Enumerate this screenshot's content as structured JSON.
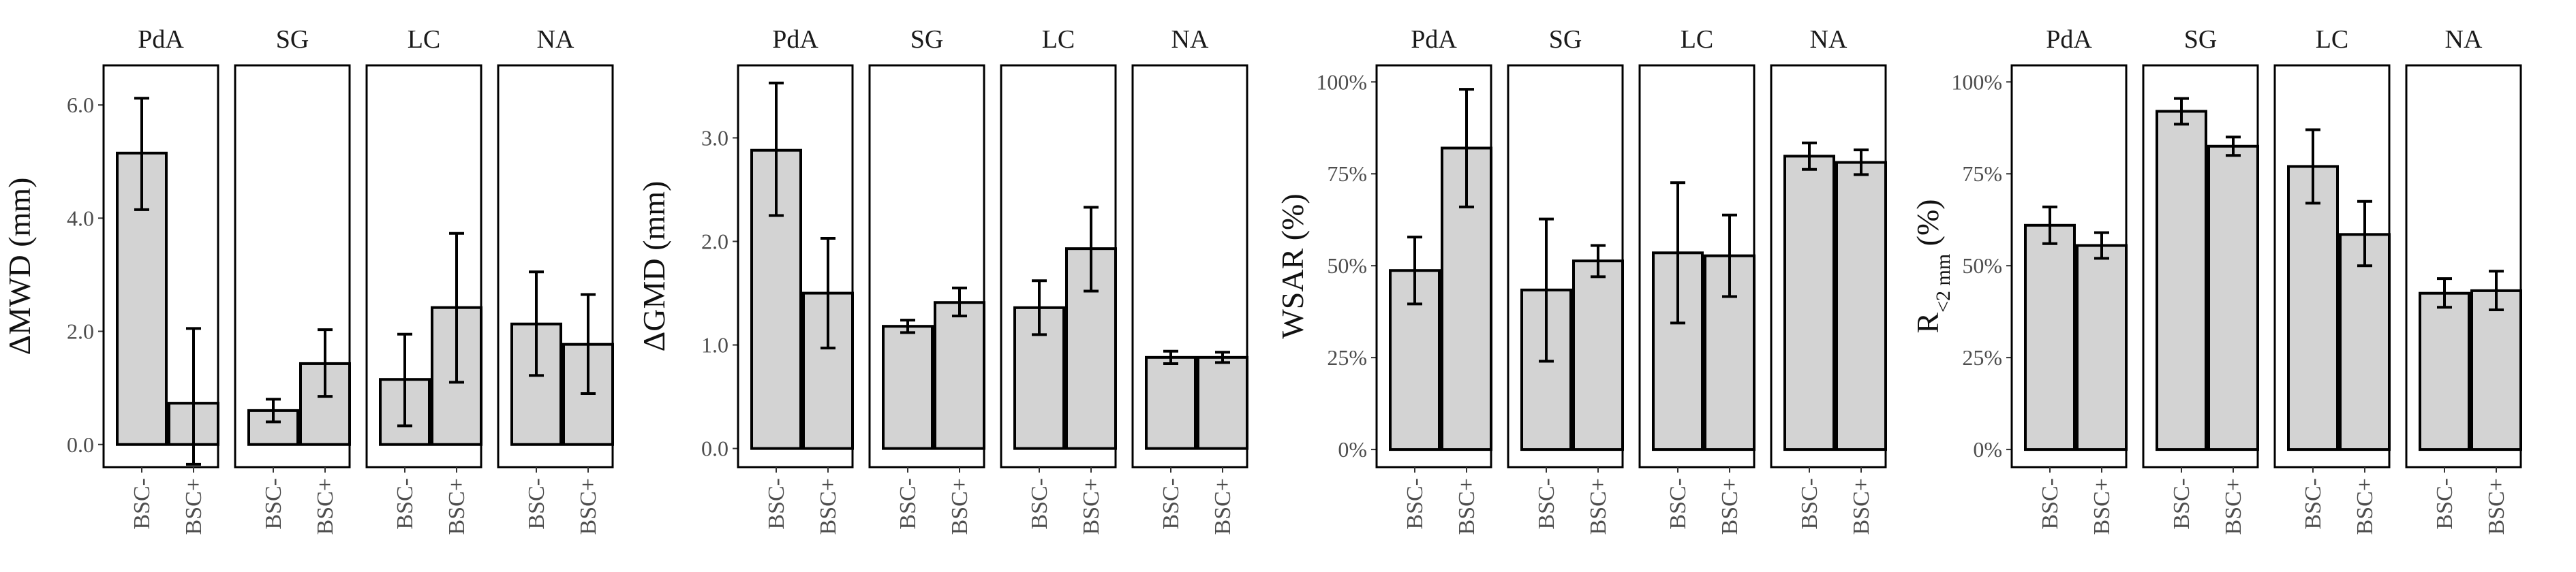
{
  "bar_fill": "#d3d3d3",
  "bar_stroke": "#000000",
  "panel_stroke": "#000000",
  "chart_data": [
    {
      "type": "bar",
      "ylabel": "ΔMWD (mm)",
      "ylabel_sub": "",
      "ylabel_suffix": "",
      "ylim": [
        -0.4,
        6.7
      ],
      "yticks": [
        0,
        2,
        4,
        6
      ],
      "ytick_labels": [
        "0.0",
        "2.0",
        "4.0",
        "6.0"
      ],
      "facets": [
        {
          "name": "PdA",
          "categories": [
            "BSC-",
            "BSC+"
          ],
          "values": [
            5.15,
            0.73
          ],
          "err_low": [
            4.15,
            -0.35
          ],
          "err_high": [
            6.12,
            2.05
          ]
        },
        {
          "name": "SG",
          "categories": [
            "BSC-",
            "BSC+"
          ],
          "values": [
            0.6,
            1.43
          ],
          "err_low": [
            0.4,
            0.85
          ],
          "err_high": [
            0.8,
            2.03
          ]
        },
        {
          "name": "LC",
          "categories": [
            "BSC-",
            "BSC+"
          ],
          "values": [
            1.15,
            2.42
          ],
          "err_low": [
            0.33,
            1.1
          ],
          "err_high": [
            1.95,
            3.73
          ]
        },
        {
          "name": "NA",
          "categories": [
            "BSC-",
            "BSC+"
          ],
          "values": [
            2.13,
            1.77
          ],
          "err_low": [
            1.22,
            0.9
          ],
          "err_high": [
            3.05,
            2.65
          ]
        }
      ]
    },
    {
      "type": "bar",
      "ylabel": "ΔGMD (mm)",
      "ylabel_sub": "",
      "ylabel_suffix": "",
      "ylim": [
        -0.18,
        3.7
      ],
      "yticks": [
        0,
        1,
        2,
        3
      ],
      "ytick_labels": [
        "0.0",
        "1.0",
        "2.0",
        "3.0"
      ],
      "facets": [
        {
          "name": "PdA",
          "categories": [
            "BSC-",
            "BSC+"
          ],
          "values": [
            2.88,
            1.5
          ],
          "err_low": [
            2.25,
            0.97
          ],
          "err_high": [
            3.53,
            2.03
          ]
        },
        {
          "name": "SG",
          "categories": [
            "BSC-",
            "BSC+"
          ],
          "values": [
            1.18,
            1.41
          ],
          "err_low": [
            1.12,
            1.28
          ],
          "err_high": [
            1.24,
            1.55
          ]
        },
        {
          "name": "LC",
          "categories": [
            "BSC-",
            "BSC+"
          ],
          "values": [
            1.36,
            1.93
          ],
          "err_low": [
            1.1,
            1.52
          ],
          "err_high": [
            1.62,
            2.33
          ]
        },
        {
          "name": "NA",
          "categories": [
            "BSC-",
            "BSC+"
          ],
          "values": [
            0.88,
            0.88
          ],
          "err_low": [
            0.82,
            0.83
          ],
          "err_high": [
            0.94,
            0.93
          ]
        }
      ]
    },
    {
      "type": "bar",
      "ylabel": "WSAR (%)",
      "ylabel_sub": "",
      "ylabel_suffix": "",
      "ylim": [
        -4.8,
        104.5
      ],
      "yticks": [
        0,
        25,
        50,
        75,
        100
      ],
      "ytick_labels": [
        "0%",
        "25%",
        "50%",
        "75%",
        "100%"
      ],
      "facets": [
        {
          "name": "PdA",
          "categories": [
            "BSC-",
            "BSC+"
          ],
          "values": [
            48.7,
            82
          ],
          "err_low": [
            39.6,
            66
          ],
          "err_high": [
            57.8,
            98
          ]
        },
        {
          "name": "SG",
          "categories": [
            "BSC-",
            "BSC+"
          ],
          "values": [
            43.4,
            51.3
          ],
          "err_low": [
            24,
            47
          ],
          "err_high": [
            62.7,
            55.5
          ]
        },
        {
          "name": "LC",
          "categories": [
            "BSC-",
            "BSC+"
          ],
          "values": [
            53.5,
            52.7
          ],
          "err_low": [
            34.4,
            41.6
          ],
          "err_high": [
            72.6,
            63.8
          ]
        },
        {
          "name": "NA",
          "categories": [
            "BSC-",
            "BSC+"
          ],
          "values": [
            79.8,
            78.1
          ],
          "err_low": [
            76.2,
            74.8
          ],
          "err_high": [
            83.4,
            81.5
          ]
        }
      ]
    },
    {
      "type": "bar",
      "ylabel": "R",
      "ylabel_sub": "<2 mm",
      "ylabel_suffix": " (%)",
      "ylim": [
        -4.8,
        104.5
      ],
      "yticks": [
        0,
        25,
        50,
        75,
        100
      ],
      "ytick_labels": [
        "0%",
        "25%",
        "50%",
        "75%",
        "100%"
      ],
      "facets": [
        {
          "name": "PdA",
          "categories": [
            "BSC-",
            "BSC+"
          ],
          "values": [
            61,
            55.5
          ],
          "err_low": [
            56,
            52
          ],
          "err_high": [
            66,
            59
          ]
        },
        {
          "name": "SG",
          "categories": [
            "BSC-",
            "BSC+"
          ],
          "values": [
            92,
            82.5
          ],
          "err_low": [
            88.5,
            80
          ],
          "err_high": [
            95.5,
            85
          ]
        },
        {
          "name": "LC",
          "categories": [
            "BSC-",
            "BSC+"
          ],
          "values": [
            77,
            58.5
          ],
          "err_low": [
            67,
            50
          ],
          "err_high": [
            87,
            67.5
          ]
        },
        {
          "name": "NA",
          "categories": [
            "BSC-",
            "BSC+"
          ],
          "values": [
            42.5,
            43.2
          ],
          "err_low": [
            38.7,
            38
          ],
          "err_high": [
            46.5,
            48.5
          ]
        }
      ]
    }
  ]
}
